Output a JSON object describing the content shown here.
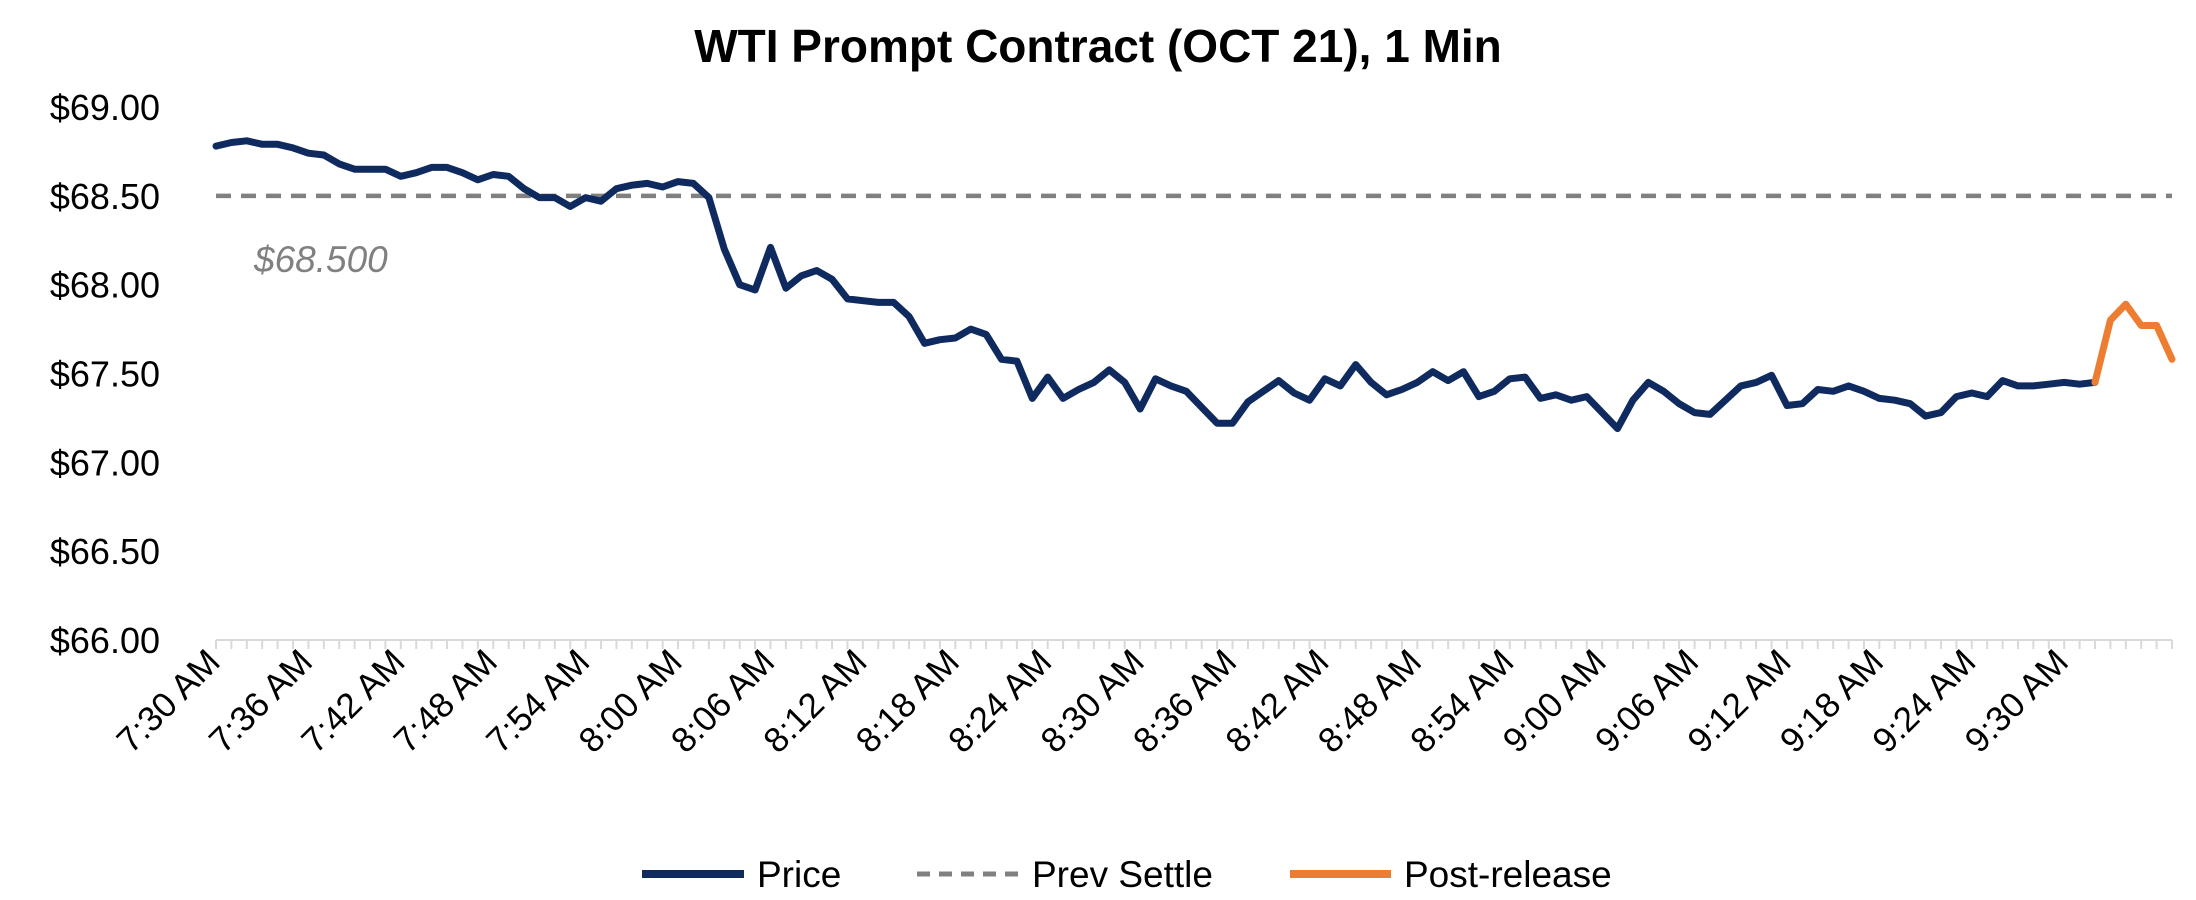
{
  "chart_data": {
    "type": "line",
    "title": "WTI Prompt Contract (OCT 21), 1 Min",
    "xlabel": "",
    "ylabel": "",
    "ylim": [
      66.0,
      69.0
    ],
    "yticks": [
      "$69.00",
      "$68.50",
      "$68.00",
      "$67.50",
      "$67.00",
      "$66.50",
      "$66.00"
    ],
    "ytick_values": [
      69.0,
      68.5,
      68.0,
      67.5,
      67.0,
      66.5,
      66.0
    ],
    "x_minutes_range": [
      0,
      127
    ],
    "xticks": [
      "7:30 AM",
      "7:36 AM",
      "7:42 AM",
      "7:48 AM",
      "7:54 AM",
      "8:00 AM",
      "8:06 AM",
      "8:12 AM",
      "8:18 AM",
      "8:24 AM",
      "8:30 AM",
      "8:36 AM",
      "8:42 AM",
      "8:48 AM",
      "8:54 AM",
      "9:00 AM",
      "9:06 AM",
      "9:12 AM",
      "9:18 AM",
      "9:24 AM",
      "9:30 AM"
    ],
    "xtick_minutes": [
      0,
      6,
      12,
      18,
      24,
      30,
      36,
      42,
      48,
      54,
      60,
      66,
      72,
      78,
      84,
      90,
      96,
      102,
      108,
      114,
      120
    ],
    "prev_settle": {
      "name": "Prev Settle",
      "value": 68.5,
      "label": "$68.500",
      "color": "#808080"
    },
    "series": [
      {
        "name": "Price",
        "color": "#0e2a5e",
        "x": [
          0,
          1,
          2,
          3,
          4,
          5,
          6,
          7,
          8,
          9,
          10,
          11,
          12,
          13,
          14,
          15,
          16,
          17,
          18,
          19,
          20,
          21,
          22,
          23,
          24,
          25,
          26,
          27,
          28,
          29,
          30,
          31,
          32,
          33,
          34,
          35,
          36,
          37,
          38,
          39,
          40,
          41,
          42,
          43,
          44,
          45,
          46,
          47,
          48,
          49,
          50,
          51,
          52,
          53,
          54,
          55,
          56,
          57,
          58,
          59,
          60,
          61,
          62,
          63,
          64,
          65,
          66,
          67,
          68,
          69,
          70,
          71,
          72,
          73,
          74,
          75,
          76,
          77,
          78,
          79,
          80,
          81,
          82,
          83,
          84,
          85,
          86,
          87,
          88,
          89,
          90,
          91,
          92,
          93,
          94,
          95,
          96,
          97,
          98,
          99,
          100,
          101,
          102,
          103,
          104,
          105,
          106,
          107,
          108,
          109,
          110,
          111,
          112,
          113,
          114,
          115,
          116,
          117,
          118,
          119,
          120,
          121,
          122
        ],
        "values": [
          68.78,
          68.8,
          68.81,
          68.79,
          68.79,
          68.77,
          68.74,
          68.73,
          68.68,
          68.65,
          68.65,
          68.65,
          68.61,
          68.63,
          68.66,
          68.66,
          68.63,
          68.59,
          68.62,
          68.61,
          68.54,
          68.49,
          68.49,
          68.44,
          68.49,
          68.47,
          68.54,
          68.56,
          68.57,
          68.55,
          68.58,
          68.57,
          68.49,
          68.2,
          68.0,
          67.97,
          68.21,
          67.98,
          68.05,
          68.08,
          68.03,
          67.92,
          67.91,
          67.9,
          67.9,
          67.82,
          67.67,
          67.69,
          67.7,
          67.75,
          67.72,
          67.58,
          67.57,
          67.36,
          67.48,
          67.36,
          67.41,
          67.45,
          67.52,
          67.45,
          67.3,
          67.47,
          67.43,
          67.4,
          67.31,
          67.22,
          67.22,
          67.34,
          67.4,
          67.46,
          67.39,
          67.35,
          67.47,
          67.43,
          67.55,
          67.45,
          67.38,
          67.41,
          67.45,
          67.51,
          67.46,
          67.51,
          67.37,
          67.4,
          67.47,
          67.48,
          67.36,
          67.38,
          67.35,
          67.37,
          67.28,
          67.19,
          67.35,
          67.45,
          67.4,
          67.33,
          67.28,
          67.27,
          67.35,
          67.43,
          67.45,
          67.49,
          67.32,
          67.33,
          67.41,
          67.4,
          67.43,
          67.4,
          67.36,
          67.35,
          67.33,
          67.26,
          67.28,
          67.37,
          67.39,
          67.37,
          67.46,
          67.43,
          67.43,
          67.44,
          67.45,
          67.44,
          67.45
        ]
      },
      {
        "name": "Post-release",
        "color": "#ed7d31",
        "x": [
          122,
          123,
          124,
          125,
          126,
          127
        ],
        "values": [
          67.45,
          67.8,
          67.89,
          67.77,
          67.77,
          67.58
        ]
      }
    ],
    "legend": {
      "position": "bottom-center",
      "entries": [
        "Price",
        "Prev Settle",
        "Post-release"
      ]
    }
  }
}
